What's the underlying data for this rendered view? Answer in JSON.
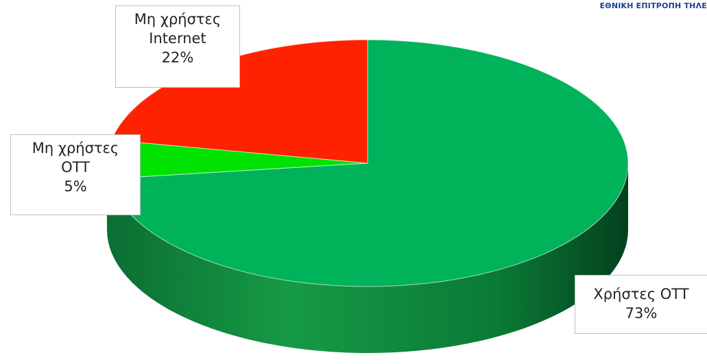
{
  "header": {
    "text": "ΕΘΝΙΚΗ ΕΠΙΤΡΟΠΗ ΤΗΛΕ"
  },
  "colors": {
    "green": "#00b35a",
    "red": "#ff2200",
    "lightgreen": "#00e300"
  },
  "chart_data": {
    "type": "pie",
    "slices": [
      {
        "name": "Χρήστες OTT",
        "value": 73,
        "label_lines": [
          "Χρήστες OTT",
          "73%"
        ],
        "color": "#00b35a"
      },
      {
        "name": "Μη χρήστες OTT",
        "value": 5,
        "label_lines": [
          "Μη χρήστες",
          "OTT",
          "5%"
        ],
        "color": "#00e300"
      },
      {
        "name": "Μη χρήστες Internet",
        "value": 22,
        "label_lines": [
          "Μη χρήστες",
          "Internet",
          "22%"
        ],
        "color": "#ff2200"
      }
    ]
  }
}
